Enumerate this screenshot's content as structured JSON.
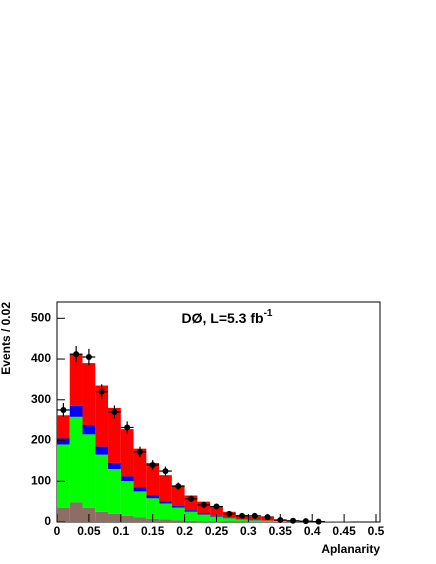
{
  "chart_data": {
    "type": "histogram",
    "annotation": "DØ, L=5.3 fb",
    "annotation_sup": "-1",
    "xlabel": "Aplanarity",
    "ylabel": "Events / 0.02",
    "bins": [
      0,
      0.02,
      0.04,
      0.06,
      0.08,
      0.1,
      0.12,
      0.14,
      0.16,
      0.18,
      0.2,
      0.22,
      0.24,
      0.26,
      0.28,
      0.3,
      0.32,
      0.34,
      0.36,
      0.38,
      0.4,
      0.42,
      0.44,
      0.46,
      0.48,
      0.5
    ],
    "series": [
      {
        "color": "#8c6e64",
        "values": [
          35,
          48,
          35,
          25,
          20,
          15,
          11,
          8,
          6,
          4,
          3,
          2,
          2,
          1,
          1,
          0,
          0,
          0,
          0,
          0,
          0,
          0,
          0,
          0,
          0
        ]
      },
      {
        "color": "#00ff00",
        "values": [
          155,
          210,
          180,
          140,
          110,
          85,
          64,
          50,
          39,
          31,
          22,
          16,
          11,
          8,
          5,
          4,
          3,
          2,
          1,
          0,
          0,
          0,
          0,
          0,
          0
        ]
      },
      {
        "color": "#0000ff",
        "values": [
          15,
          27,
          23,
          20,
          15,
          12,
          10,
          8,
          6,
          5,
          4,
          3,
          2,
          1,
          1,
          1,
          0,
          0,
          0,
          0,
          0,
          0,
          0,
          0,
          0
        ]
      },
      {
        "color": "#ff0000",
        "values": [
          57,
          127,
          152,
          150,
          135,
          116,
          95,
          79,
          64,
          50,
          36,
          29,
          23,
          15,
          10,
          8,
          7,
          4,
          3,
          2,
          1,
          1,
          1,
          0,
          0
        ]
      }
    ],
    "points": {
      "color": "#000000",
      "x": [
        0.01,
        0.03,
        0.05,
        0.07,
        0.09,
        0.11,
        0.13,
        0.15,
        0.17,
        0.19,
        0.21,
        0.23,
        0.25,
        0.27,
        0.29,
        0.31,
        0.33,
        0.35,
        0.37,
        0.39,
        0.41
      ],
      "values": [
        275,
        412,
        405,
        320,
        270,
        232,
        172,
        140,
        125,
        88,
        57,
        42,
        38,
        20,
        15,
        15,
        12,
        5,
        3,
        2,
        1
      ],
      "errors": [
        17,
        20,
        20,
        18,
        16,
        15,
        13,
        12,
        11,
        9,
        8,
        6,
        6,
        4,
        4,
        4,
        3,
        2,
        2,
        1,
        1
      ]
    },
    "xlim": [
      0,
      0.5
    ],
    "xticks": [
      0,
      0.05,
      0.1,
      0.15,
      0.2,
      0.25,
      0.3,
      0.35,
      0.4,
      0.45,
      0.5
    ],
    "ylim": [
      0,
      540
    ],
    "yticks": [
      0,
      100,
      200,
      300,
      400,
      500
    ]
  }
}
